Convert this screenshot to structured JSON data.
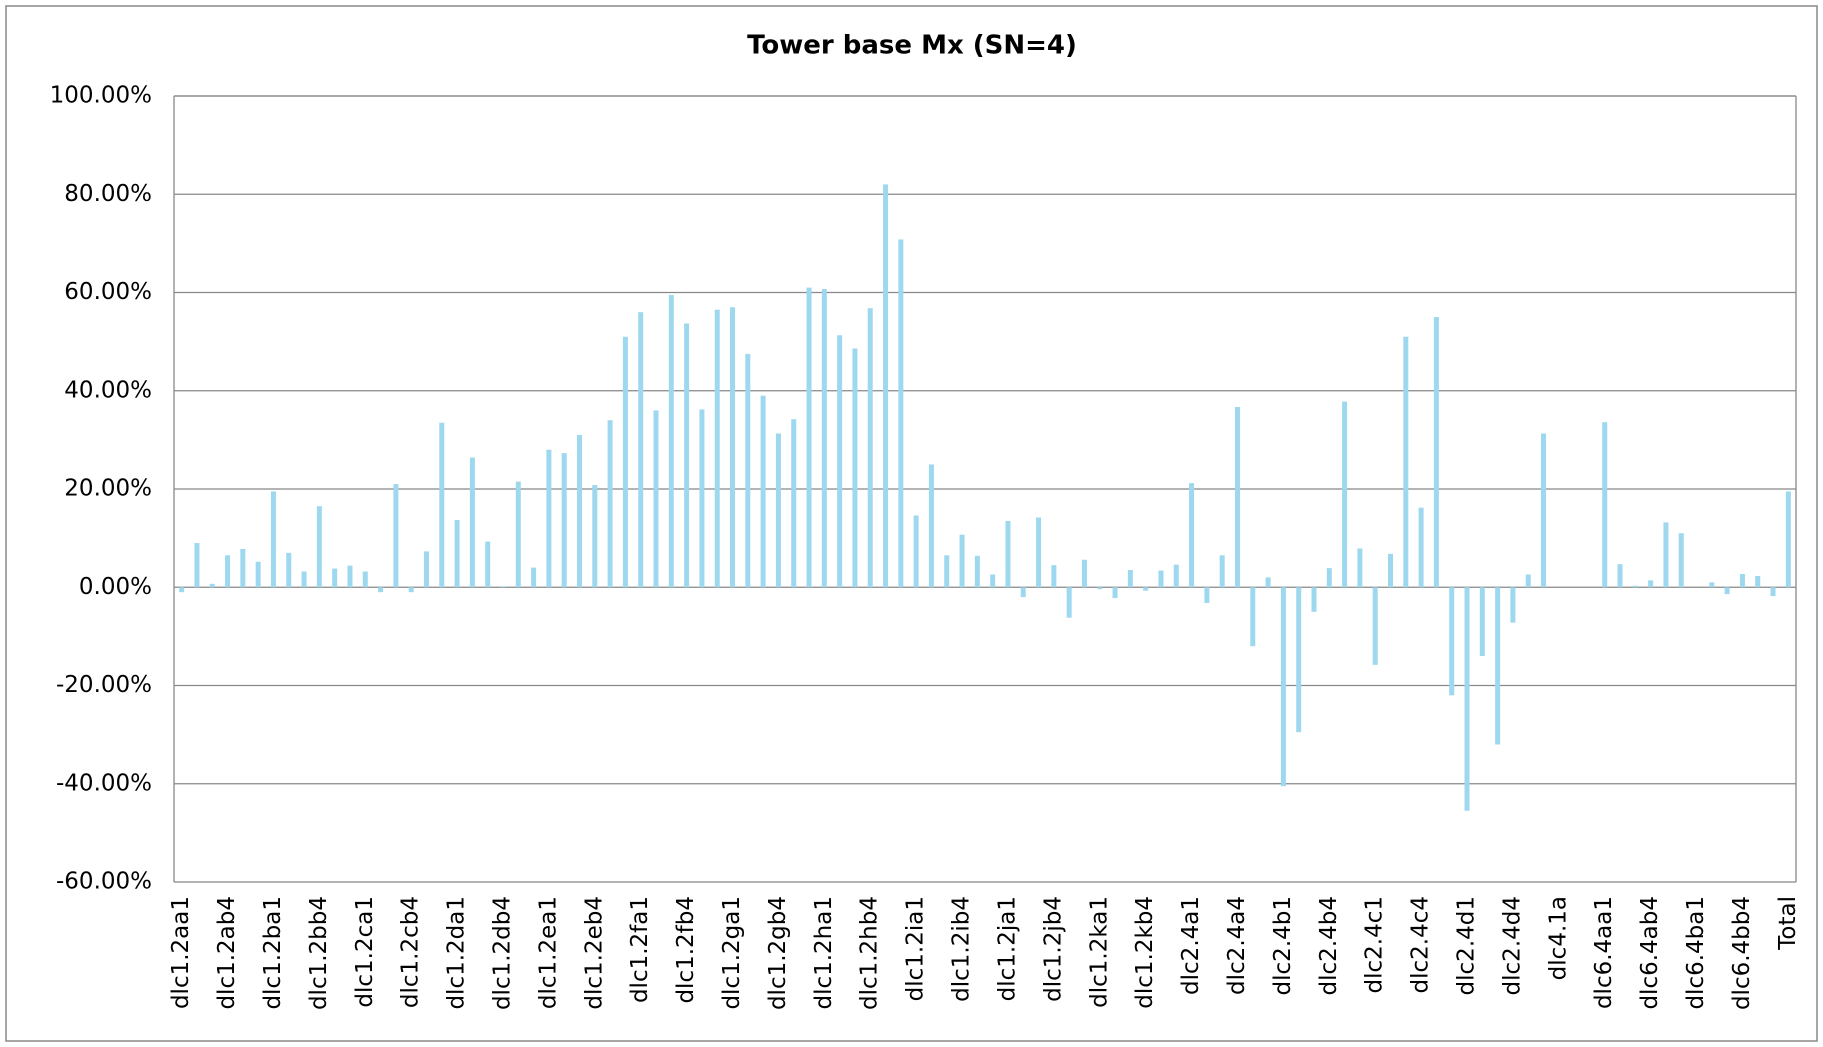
{
  "chart_data": {
    "type": "bar",
    "title": "Tower base Mx (SN=4)",
    "categories": [
      "dlc1.2aa1",
      null,
      null,
      "dlc1.2ab4",
      null,
      null,
      "dlc1.2ba1",
      null,
      null,
      "dlc1.2bb4",
      null,
      null,
      "dlc1.2ca1",
      null,
      null,
      "dlc1.2cb4",
      null,
      null,
      "dlc1.2da1",
      null,
      null,
      "dlc1.2db4",
      null,
      null,
      "dlc1.2ea1",
      null,
      null,
      "dlc1.2eb4",
      null,
      null,
      "dlc1.2fa1",
      null,
      null,
      "dlc1.2fb4",
      null,
      null,
      "dlc1.2ga1",
      null,
      null,
      "dlc1.2gb4",
      null,
      null,
      "dlc1.2ha1",
      null,
      null,
      "dlc1.2hb4",
      null,
      null,
      "dlc1.2ia1",
      null,
      null,
      "dlc1.2ib4",
      null,
      null,
      "dlc1.2ja1",
      null,
      null,
      "dlc1.2jb4",
      null,
      null,
      "dlc1.2ka1",
      null,
      null,
      "dlc1.2kb4",
      null,
      null,
      "dlc2.4a1",
      null,
      null,
      "dlc2.4a4",
      null,
      null,
      "dlc2.4b1",
      null,
      null,
      "dlc2.4b4",
      null,
      null,
      "dlc2.4c1",
      null,
      null,
      "dlc2.4c4",
      null,
      null,
      "dlc2.4d1",
      null,
      null,
      "dlc2.4d4",
      null,
      null,
      "dlc4.1a",
      null,
      null,
      "dlc6.4aa1",
      null,
      null,
      "dlc6.4ab4",
      null,
      null,
      "dlc6.4ba1",
      null,
      null,
      "dlc6.4bb4",
      null,
      null,
      "Total"
    ],
    "values": [
      -1,
      9,
      0.7,
      6.5,
      7.8,
      5.2,
      19.5,
      7,
      3.2,
      16.5,
      3.8,
      4.4,
      3.2,
      -1,
      21,
      -1,
      7.3,
      33.5,
      13.7,
      26.4,
      9.3,
      0.2,
      21.5,
      4,
      28,
      27.3,
      31,
      20.8,
      34,
      51,
      56,
      36,
      59.5,
      53.7,
      36.2,
      56.5,
      57,
      47.5,
      39,
      31.3,
      34.2,
      61,
      60.7,
      51.3,
      48.6,
      56.8,
      82,
      70.8,
      14.6,
      25,
      6.5,
      10.7,
      6.4,
      2.6,
      13.5,
      -2,
      14.2,
      4.5,
      -6.2,
      5.6,
      -0.4,
      -2.2,
      3.5,
      -0.7,
      3.4,
      4.6,
      21.2,
      -3.2,
      6.5,
      36.7,
      -12,
      2,
      -40.5,
      -29.5,
      -5,
      3.9,
      37.8,
      7.9,
      -15.8,
      6.8,
      51,
      16.2,
      55,
      -22,
      -45.5,
      -14,
      -32,
      -7.2,
      2.6,
      31.3,
      0,
      0,
      0,
      33.6,
      4.7,
      0.3,
      1.4,
      13.2,
      11,
      0,
      1,
      -1.4,
      2.7,
      2.3,
      -1.8,
      19.5
    ],
    "color": "#9dd8ef",
    "ylim": [
      -60,
      100
    ],
    "yticks": [
      {
        "value": -60,
        "label": "-60.00%"
      },
      {
        "value": -40,
        "label": "-40.00%"
      },
      {
        "value": -20,
        "label": "-20.00%"
      },
      {
        "value": 0,
        "label": "0.00%"
      },
      {
        "value": 20,
        "label": "20.00%"
      },
      {
        "value": 40,
        "label": "40.00%"
      },
      {
        "value": 60,
        "label": "60.00%"
      },
      {
        "value": 80,
        "label": "80.00%"
      },
      {
        "value": 100,
        "label": "100.00%"
      }
    ],
    "grid": true
  }
}
